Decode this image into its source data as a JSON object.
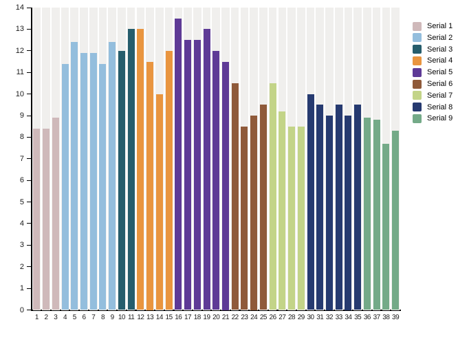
{
  "chart_data": {
    "type": "bar",
    "title": "",
    "xlabel": "",
    "ylabel": "",
    "ylim": [
      0,
      14
    ],
    "yticks": [
      0,
      1,
      2,
      3,
      4,
      5,
      6,
      7,
      8,
      9,
      10,
      11,
      12,
      13,
      14
    ],
    "categories": [
      1,
      2,
      3,
      4,
      5,
      6,
      7,
      8,
      9,
      10,
      11,
      12,
      13,
      14,
      15,
      16,
      17,
      18,
      19,
      20,
      21,
      22,
      23,
      24,
      25,
      26,
      27,
      28,
      29,
      30,
      31,
      32,
      33,
      34,
      35,
      36,
      37,
      38,
      39
    ],
    "grid": "vertical column bands only, no horizontal gridlines",
    "plot_band_color": "#f0efed",
    "axis_color": "#000000",
    "legend_position": "right",
    "series": [
      {
        "name": "Serial 1",
        "color": "#cfb9ba",
        "x": [
          1,
          2,
          3
        ],
        "values": [
          8.4,
          8.4,
          8.9
        ]
      },
      {
        "name": "Serial 2",
        "color": "#94bedd",
        "x": [
          4,
          5,
          6,
          7,
          8,
          9
        ],
        "values": [
          11.4,
          12.4,
          11.9,
          11.9,
          11.4,
          12.4
        ]
      },
      {
        "name": "Serial 3",
        "color": "#265d6c",
        "x": [
          10,
          11
        ],
        "values": [
          12.0,
          13.0
        ]
      },
      {
        "name": "Serial 4",
        "color": "#e9953f",
        "x": [
          12,
          13,
          14,
          15
        ],
        "values": [
          13.0,
          11.5,
          10.0,
          12.0
        ]
      },
      {
        "name": "Serial 5",
        "color": "#5e3a96",
        "x": [
          16,
          17,
          18,
          19,
          20,
          21
        ],
        "values": [
          13.5,
          12.5,
          12.5,
          13.0,
          12.0,
          11.5
        ]
      },
      {
        "name": "Serial 6",
        "color": "#8f5a3a",
        "x": [
          22,
          23,
          24,
          25
        ],
        "values": [
          10.5,
          8.5,
          9.0,
          9.5
        ]
      },
      {
        "name": "Serial 7",
        "color": "#c3d488",
        "x": [
          26,
          27,
          28,
          29
        ],
        "values": [
          10.5,
          9.2,
          8.5,
          8.5
        ]
      },
      {
        "name": "Serial 8",
        "color": "#263a70",
        "x": [
          30,
          31,
          32,
          33,
          34,
          35
        ],
        "values": [
          10.0,
          9.5,
          9.0,
          9.5,
          9.0,
          9.5
        ]
      },
      {
        "name": "Serial 9",
        "color": "#74aa88",
        "x": [
          36,
          37,
          38,
          39
        ],
        "values": [
          8.9,
          8.8,
          7.7,
          8.3
        ]
      }
    ]
  },
  "legend": {
    "items": [
      {
        "label": "Serial 1",
        "color": "#cfb9ba"
      },
      {
        "label": "Serial 2",
        "color": "#94bedd"
      },
      {
        "label": "Serial 3",
        "color": "#265d6c"
      },
      {
        "label": "Serial 4",
        "color": "#e9953f"
      },
      {
        "label": "Serial 5",
        "color": "#5e3a96"
      },
      {
        "label": "Serial 6",
        "color": "#8f5a3a"
      },
      {
        "label": "Serial 7",
        "color": "#c3d488"
      },
      {
        "label": "Serial 8",
        "color": "#263a70"
      },
      {
        "label": "Serial 9",
        "color": "#74aa88"
      }
    ]
  }
}
